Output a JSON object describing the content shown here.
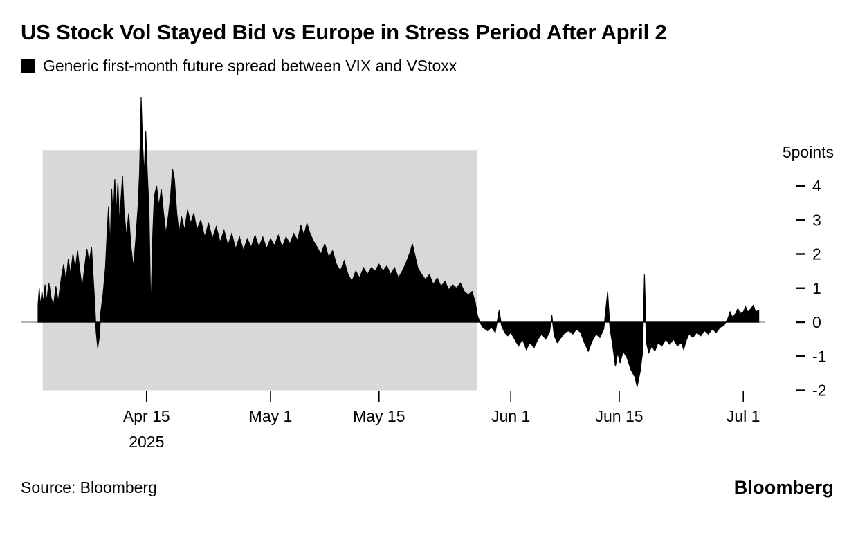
{
  "header": {
    "title": "US Stock Vol Stayed Bid vs Europe in Stress Period After April 2",
    "legend": {
      "swatch_color": "#000000",
      "label": "Generic first-month future spread between VIX and VStoxx"
    }
  },
  "chart_data": {
    "type": "area",
    "title": "US Stock Vol Stayed Bid vs Europe in Stress Period After April 2",
    "series_name": "Generic first-month future spread between VIX and VStoxx",
    "unit": "points",
    "x_unit": "day index (0 = early April 2025 start of series)",
    "ylim": [
      -2.3,
      6.8
    ],
    "xlim_days": [
      0,
      93
    ],
    "grid": false,
    "legend_position": "top-left",
    "y_axis_title": "5points",
    "y_ticks": [
      {
        "value": 4,
        "label": "4"
      },
      {
        "value": 3,
        "label": "3"
      },
      {
        "value": 2,
        "label": "2"
      },
      {
        "value": 1,
        "label": "1"
      },
      {
        "value": 0,
        "label": "0"
      },
      {
        "value": -1,
        "label": "-1"
      },
      {
        "value": -2,
        "label": "-2"
      }
    ],
    "x_ticks": [
      {
        "day": 14,
        "label": "Apr 15",
        "sublabel": "2025"
      },
      {
        "day": 30,
        "label": "May 1"
      },
      {
        "day": 44,
        "label": "May 15"
      },
      {
        "day": 61,
        "label": "Jun 1"
      },
      {
        "day": 75,
        "label": "Jun 15"
      },
      {
        "day": 91,
        "label": "Jul 1"
      }
    ],
    "highlight_region": {
      "start_day": 0.6,
      "end_day": 56.7,
      "top_value": 5.05,
      "bottom_value": -2.0,
      "color": "#d8d8d8"
    },
    "zero_line": true,
    "colors": {
      "series": "#000000",
      "highlight": "#d8d8d8",
      "axis": "#000000",
      "zero_line": "#9b9b9b"
    },
    "points": [
      [
        0,
        0.5
      ],
      [
        0.15,
        1.0
      ],
      [
        0.3,
        0.45
      ],
      [
        0.5,
        0.9
      ],
      [
        0.7,
        0.55
      ],
      [
        0.9,
        1.1
      ],
      [
        1.1,
        0.6
      ],
      [
        1.4,
        1.15
      ],
      [
        1.7,
        0.7
      ],
      [
        2,
        0.5
      ],
      [
        2.3,
        1.05
      ],
      [
        2.6,
        0.6
      ],
      [
        3,
        1.3
      ],
      [
        3.3,
        1.7
      ],
      [
        3.6,
        1.2
      ],
      [
        3.9,
        1.85
      ],
      [
        4.2,
        1.4
      ],
      [
        4.5,
        2.0
      ],
      [
        4.8,
        1.55
      ],
      [
        5.1,
        2.1
      ],
      [
        5.4,
        1.5
      ],
      [
        5.7,
        1.0
      ],
      [
        6,
        1.6
      ],
      [
        6.3,
        2.15
      ],
      [
        6.6,
        1.75
      ],
      [
        6.9,
        2.2
      ],
      [
        7.1,
        1.4
      ],
      [
        7.3,
        0.6
      ],
      [
        7.5,
        -0.3
      ],
      [
        7.7,
        -0.75
      ],
      [
        7.9,
        -0.45
      ],
      [
        8.1,
        0.3
      ],
      [
        8.4,
        0.85
      ],
      [
        8.7,
        1.6
      ],
      [
        8.9,
        2.6
      ],
      [
        9.1,
        3.4
      ],
      [
        9.3,
        2.2
      ],
      [
        9.5,
        3.9
      ],
      [
        9.7,
        3.0
      ],
      [
        9.9,
        4.2
      ],
      [
        10.1,
        3.2
      ],
      [
        10.3,
        4.1
      ],
      [
        10.5,
        2.9
      ],
      [
        10.7,
        3.6
      ],
      [
        10.9,
        4.3
      ],
      [
        11.1,
        3.3
      ],
      [
        11.4,
        2.5
      ],
      [
        11.7,
        3.2
      ],
      [
        12,
        2.2
      ],
      [
        12.3,
        1.6
      ],
      [
        12.6,
        2.4
      ],
      [
        12.9,
        3.4
      ],
      [
        13.1,
        4.4
      ],
      [
        13.3,
        6.6
      ],
      [
        13.5,
        5.2
      ],
      [
        13.7,
        4.3
      ],
      [
        13.9,
        5.6
      ],
      [
        14.1,
        4.4
      ],
      [
        14.3,
        3.4
      ],
      [
        14.55,
        0.3
      ],
      [
        14.8,
        2.6
      ],
      [
        15,
        3.7
      ],
      [
        15.3,
        4.0
      ],
      [
        15.6,
        3.4
      ],
      [
        15.9,
        3.9
      ],
      [
        16.2,
        3.2
      ],
      [
        16.5,
        2.6
      ],
      [
        16.8,
        3.1
      ],
      [
        17.1,
        3.7
      ],
      [
        17.35,
        4.5
      ],
      [
        17.6,
        4.2
      ],
      [
        17.9,
        3.2
      ],
      [
        18.2,
        2.6
      ],
      [
        18.5,
        3.1
      ],
      [
        18.9,
        2.7
      ],
      [
        19.3,
        3.3
      ],
      [
        19.7,
        2.9
      ],
      [
        20.1,
        3.2
      ],
      [
        20.5,
        2.7
      ],
      [
        21,
        3.0
      ],
      [
        21.5,
        2.5
      ],
      [
        22,
        2.9
      ],
      [
        22.5,
        2.45
      ],
      [
        23,
        2.8
      ],
      [
        23.5,
        2.35
      ],
      [
        24,
        2.7
      ],
      [
        24.5,
        2.25
      ],
      [
        25,
        2.6
      ],
      [
        25.5,
        2.15
      ],
      [
        26,
        2.5
      ],
      [
        26.5,
        2.1
      ],
      [
        27,
        2.45
      ],
      [
        27.5,
        2.2
      ],
      [
        28,
        2.55
      ],
      [
        28.5,
        2.2
      ],
      [
        29,
        2.5
      ],
      [
        29.5,
        2.15
      ],
      [
        30,
        2.45
      ],
      [
        30.5,
        2.25
      ],
      [
        31,
        2.55
      ],
      [
        31.5,
        2.2
      ],
      [
        32,
        2.5
      ],
      [
        32.5,
        2.3
      ],
      [
        33,
        2.6
      ],
      [
        33.5,
        2.4
      ],
      [
        33.9,
        2.85
      ],
      [
        34.3,
        2.55
      ],
      [
        34.7,
        2.9
      ],
      [
        35.1,
        2.6
      ],
      [
        35.5,
        2.4
      ],
      [
        36,
        2.2
      ],
      [
        36.5,
        2.0
      ],
      [
        37,
        2.3
      ],
      [
        37.5,
        1.9
      ],
      [
        38,
        2.1
      ],
      [
        38.5,
        1.7
      ],
      [
        39,
        1.5
      ],
      [
        39.5,
        1.8
      ],
      [
        40,
        1.4
      ],
      [
        40.5,
        1.2
      ],
      [
        41,
        1.5
      ],
      [
        41.5,
        1.3
      ],
      [
        42,
        1.6
      ],
      [
        42.5,
        1.4
      ],
      [
        43,
        1.6
      ],
      [
        43.5,
        1.5
      ],
      [
        44,
        1.7
      ],
      [
        44.5,
        1.5
      ],
      [
        45,
        1.65
      ],
      [
        45.5,
        1.4
      ],
      [
        46,
        1.6
      ],
      [
        46.5,
        1.3
      ],
      [
        47,
        1.5
      ],
      [
        47.5,
        1.75
      ],
      [
        48,
        2.05
      ],
      [
        48.3,
        2.3
      ],
      [
        48.7,
        1.9
      ],
      [
        49,
        1.6
      ],
      [
        49.5,
        1.4
      ],
      [
        50,
        1.25
      ],
      [
        50.5,
        1.4
      ],
      [
        51,
        1.1
      ],
      [
        51.5,
        1.3
      ],
      [
        52,
        1.05
      ],
      [
        52.5,
        1.2
      ],
      [
        53,
        0.95
      ],
      [
        53.5,
        1.1
      ],
      [
        54,
        1.0
      ],
      [
        54.5,
        1.15
      ],
      [
        55,
        0.9
      ],
      [
        55.5,
        0.8
      ],
      [
        56,
        0.9
      ],
      [
        56.4,
        0.6
      ],
      [
        56.7,
        0.2
      ],
      [
        57,
        0.0
      ],
      [
        57.4,
        -0.15
      ],
      [
        58,
        -0.25
      ],
      [
        58.5,
        -0.15
      ],
      [
        59,
        -0.3
      ],
      [
        59.5,
        0.35
      ],
      [
        59.8,
        -0.1
      ],
      [
        60.2,
        -0.3
      ],
      [
        60.6,
        -0.4
      ],
      [
        61,
        -0.3
      ],
      [
        61.5,
        -0.5
      ],
      [
        62,
        -0.7
      ],
      [
        62.5,
        -0.5
      ],
      [
        63,
        -0.8
      ],
      [
        63.5,
        -0.6
      ],
      [
        64,
        -0.75
      ],
      [
        64.5,
        -0.5
      ],
      [
        65,
        -0.35
      ],
      [
        65.5,
        -0.5
      ],
      [
        66,
        -0.3
      ],
      [
        66.3,
        0.2
      ],
      [
        66.6,
        -0.4
      ],
      [
        67,
        -0.6
      ],
      [
        67.5,
        -0.45
      ],
      [
        68,
        -0.3
      ],
      [
        68.5,
        -0.25
      ],
      [
        69,
        -0.35
      ],
      [
        69.5,
        -0.2
      ],
      [
        70,
        -0.3
      ],
      [
        70.5,
        -0.6
      ],
      [
        71,
        -0.85
      ],
      [
        71.5,
        -0.55
      ],
      [
        72,
        -0.35
      ],
      [
        72.5,
        -0.45
      ],
      [
        73,
        -0.2
      ],
      [
        73.5,
        0.9
      ],
      [
        73.8,
        -0.2
      ],
      [
        74.1,
        -0.6
      ],
      [
        74.5,
        -1.3
      ],
      [
        74.8,
        -0.9
      ],
      [
        75.1,
        -1.2
      ],
      [
        75.5,
        -0.85
      ],
      [
        76,
        -1.05
      ],
      [
        76.5,
        -1.4
      ],
      [
        77,
        -1.6
      ],
      [
        77.3,
        -1.9
      ],
      [
        77.7,
        -1.45
      ],
      [
        78,
        -0.9
      ],
      [
        78.25,
        1.4
      ],
      [
        78.5,
        -0.6
      ],
      [
        78.8,
        -0.9
      ],
      [
        79.2,
        -0.7
      ],
      [
        79.6,
        -0.85
      ],
      [
        80,
        -0.6
      ],
      [
        80.5,
        -0.7
      ],
      [
        81,
        -0.5
      ],
      [
        81.5,
        -0.65
      ],
      [
        82,
        -0.5
      ],
      [
        82.5,
        -0.7
      ],
      [
        83,
        -0.6
      ],
      [
        83.3,
        -0.8
      ],
      [
        83.7,
        -0.5
      ],
      [
        84,
        -0.35
      ],
      [
        84.5,
        -0.45
      ],
      [
        85,
        -0.3
      ],
      [
        85.5,
        -0.4
      ],
      [
        86,
        -0.25
      ],
      [
        86.5,
        -0.35
      ],
      [
        87,
        -0.2
      ],
      [
        87.5,
        -0.3
      ],
      [
        88,
        -0.15
      ],
      [
        88.5,
        -0.1
      ],
      [
        89,
        0.1
      ],
      [
        89.3,
        0.3
      ],
      [
        89.6,
        0.15
      ],
      [
        90,
        0.25
      ],
      [
        90.3,
        0.4
      ],
      [
        90.6,
        0.25
      ],
      [
        91,
        0.3
      ],
      [
        91.3,
        0.45
      ],
      [
        91.6,
        0.3
      ],
      [
        92,
        0.4
      ],
      [
        92.3,
        0.5
      ],
      [
        92.6,
        0.3
      ],
      [
        93,
        0.35
      ]
    ]
  },
  "footer": {
    "source": "Source: Bloomberg",
    "brand": "Bloomberg"
  }
}
